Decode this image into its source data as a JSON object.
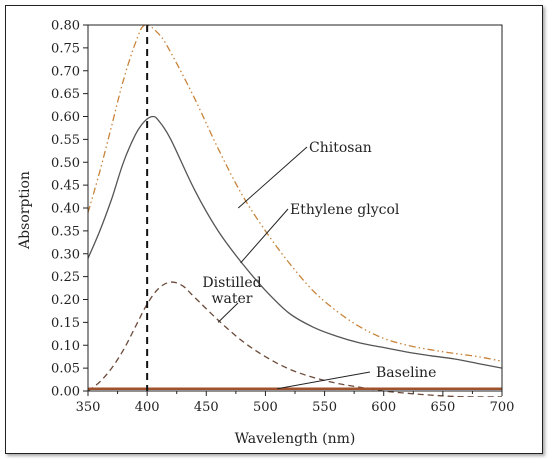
{
  "chart_data": {
    "type": "line",
    "title": "",
    "xlabel": "Wavelength (nm)",
    "ylabel": "Absorption",
    "xlim": [
      350,
      700
    ],
    "ylim": [
      0,
      0.8
    ],
    "xticks": [
      350,
      400,
      450,
      500,
      550,
      600,
      650,
      700
    ],
    "yticks": [
      0.0,
      0.05,
      0.1,
      0.15,
      0.2,
      0.25,
      0.3,
      0.35,
      0.4,
      0.45,
      0.5,
      0.55,
      0.6,
      0.65,
      0.7,
      0.75,
      0.8
    ],
    "grid": false,
    "legend": "none",
    "vertical_line_x": 400,
    "series": [
      {
        "name": "Chitosan",
        "color": "#c8843a",
        "style": "dash-dot-dot",
        "x": [
          350,
          360,
          370,
          380,
          390,
          398,
          410,
          420,
          440,
          460,
          480,
          500,
          520,
          540,
          560,
          580,
          600,
          620,
          640,
          660,
          680,
          700
        ],
        "y": [
          0.39,
          0.48,
          0.58,
          0.68,
          0.76,
          0.8,
          0.78,
          0.74,
          0.64,
          0.53,
          0.43,
          0.35,
          0.28,
          0.22,
          0.175,
          0.14,
          0.115,
          0.1,
          0.09,
          0.082,
          0.075,
          0.065
        ]
      },
      {
        "name": "Ethylene glycol",
        "color": "#555555",
        "style": "solid",
        "x": [
          350,
          360,
          370,
          380,
          390,
          398,
          405,
          410,
          420,
          440,
          460,
          480,
          500,
          520,
          540,
          560,
          580,
          600,
          620,
          640,
          660,
          680,
          700
        ],
        "y": [
          0.29,
          0.35,
          0.42,
          0.5,
          0.56,
          0.59,
          0.6,
          0.59,
          0.55,
          0.44,
          0.35,
          0.28,
          0.22,
          0.17,
          0.14,
          0.12,
          0.105,
          0.095,
          0.085,
          0.077,
          0.07,
          0.06,
          0.05
        ]
      },
      {
        "name": "Distilled water",
        "color": "#6b4a3a",
        "style": "dashed",
        "x": [
          350,
          360,
          370,
          380,
          390,
          400,
          410,
          420,
          430,
          440,
          460,
          480,
          500,
          520,
          540,
          560,
          580,
          600,
          620,
          640,
          660,
          680,
          700
        ],
        "y": [
          0.0,
          0.02,
          0.05,
          0.09,
          0.14,
          0.19,
          0.225,
          0.238,
          0.23,
          0.205,
          0.155,
          0.11,
          0.075,
          0.048,
          0.03,
          0.017,
          0.008,
          0.0,
          -0.005,
          -0.009,
          -0.012,
          -0.013,
          -0.013
        ]
      },
      {
        "name": "Baseline",
        "color": "#a0522d",
        "style": "solid",
        "x": [
          350,
          700
        ],
        "y": [
          0.005,
          0.005
        ]
      }
    ],
    "annotations": [
      {
        "series": "Chitosan",
        "lines": [
          "Chitosan"
        ],
        "point": [
          477,
          0.4
        ]
      },
      {
        "series": "Ethylene glycol",
        "lines": [
          "Ethylene glycol"
        ],
        "point": [
          479,
          0.28
        ]
      },
      {
        "series": "Distilled water",
        "lines": [
          "Distilled",
          "water"
        ],
        "point": [
          460,
          0.15
        ]
      },
      {
        "series": "Baseline",
        "lines": [
          "Baseline"
        ],
        "point": [
          510,
          0.005
        ]
      }
    ]
  }
}
